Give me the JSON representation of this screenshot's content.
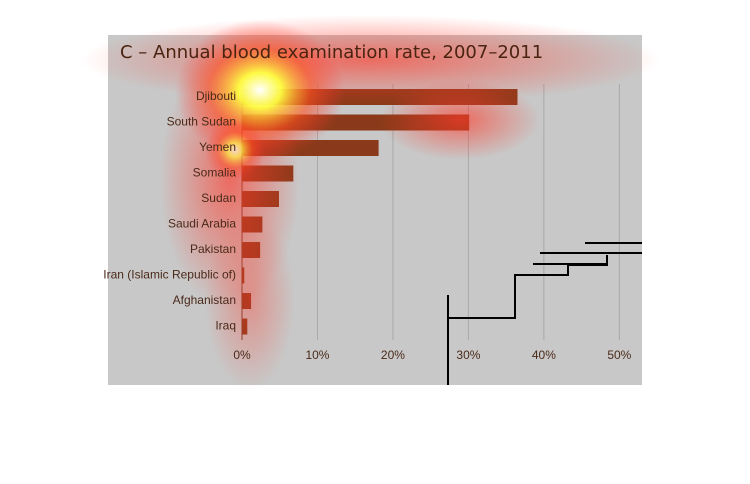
{
  "chart_data": {
    "type": "barh",
    "title": "C – Annual blood examination rate, 2007–2011",
    "categories": [
      "Djibouti",
      "South Sudan",
      "Yemen",
      "Somalia",
      "Sudan",
      "Saudi Arabia",
      "Pakistan",
      "Iran (Islamic Republic of)",
      "Afghanistan",
      "Iraq"
    ],
    "values": [
      36.5,
      30.1,
      18.1,
      6.8,
      4.9,
      2.7,
      2.4,
      0.3,
      1.2,
      0.7
    ],
    "color": "#8a3a1a",
    "xlim": [
      0,
      53
    ],
    "xticks": [
      {
        "value": 0,
        "label": "0%"
      },
      {
        "value": 10,
        "label": "10%"
      },
      {
        "value": 20,
        "label": "20%"
      },
      {
        "value": 30,
        "label": "30%"
      },
      {
        "value": 40,
        "label": "40%"
      },
      {
        "value": 50,
        "label": "50%"
      }
    ],
    "grid": true
  }
}
